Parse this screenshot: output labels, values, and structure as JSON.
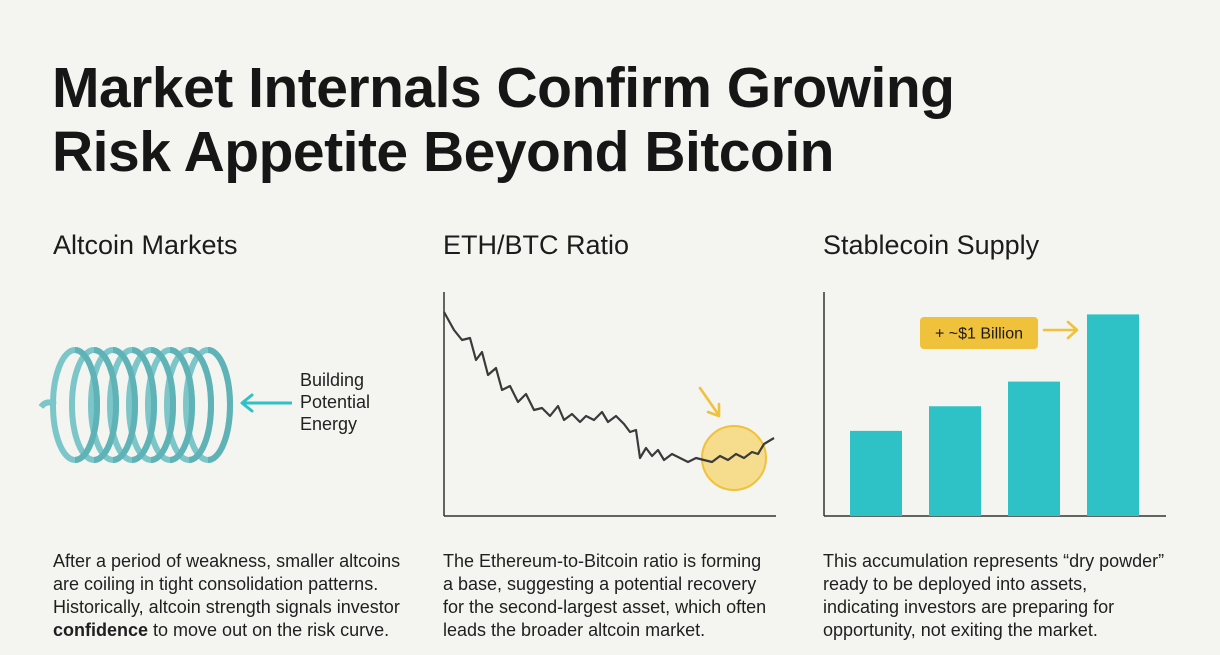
{
  "title_line1": "Market Internals Confirm Growing",
  "title_line2": "Risk Appetite Beyond Bitcoin",
  "colors": {
    "teal": "#2ec2c6",
    "coil": "#7cc6c9",
    "gold": "#f0c13a",
    "gold_fill": "#f6dc8d",
    "line": "#3a3a3a"
  },
  "altcoin": {
    "heading": "Altcoin Markets",
    "label_line1": "Building",
    "label_line2": "Potential",
    "label_line3": "Energy",
    "icon": "coiled-spring-icon",
    "para_line1": "After a period of weakness, smaller altcoins",
    "para_line2": "are coiling in tight consolidation patterns.",
    "para_line3": "Historically, altcoin strength signals investor",
    "para_bold": "confidence",
    "para_line4_rest": " to move out on the risk curve."
  },
  "ethbtc": {
    "heading": "ETH/BTC Ratio",
    "para_line1": "The Ethereum-to-Bitcoin ratio is forming",
    "para_line2": "a base, suggesting a potential recovery",
    "para_line3": "for the second-largest asset, which often",
    "para_line4": "leads the broader altcoin market."
  },
  "stablecoin": {
    "heading": "Stablecoin Supply",
    "callout": "+ ~$1 Billion",
    "bars": [
      0.38,
      0.49,
      0.6,
      0.9
    ],
    "para_line1": "This accumulation represents “dry powder”",
    "para_line2": "ready to be deployed into assets,",
    "para_line3": "indicating investors are preparing for",
    "para_line4": "opportunity, not exiting the market."
  }
}
